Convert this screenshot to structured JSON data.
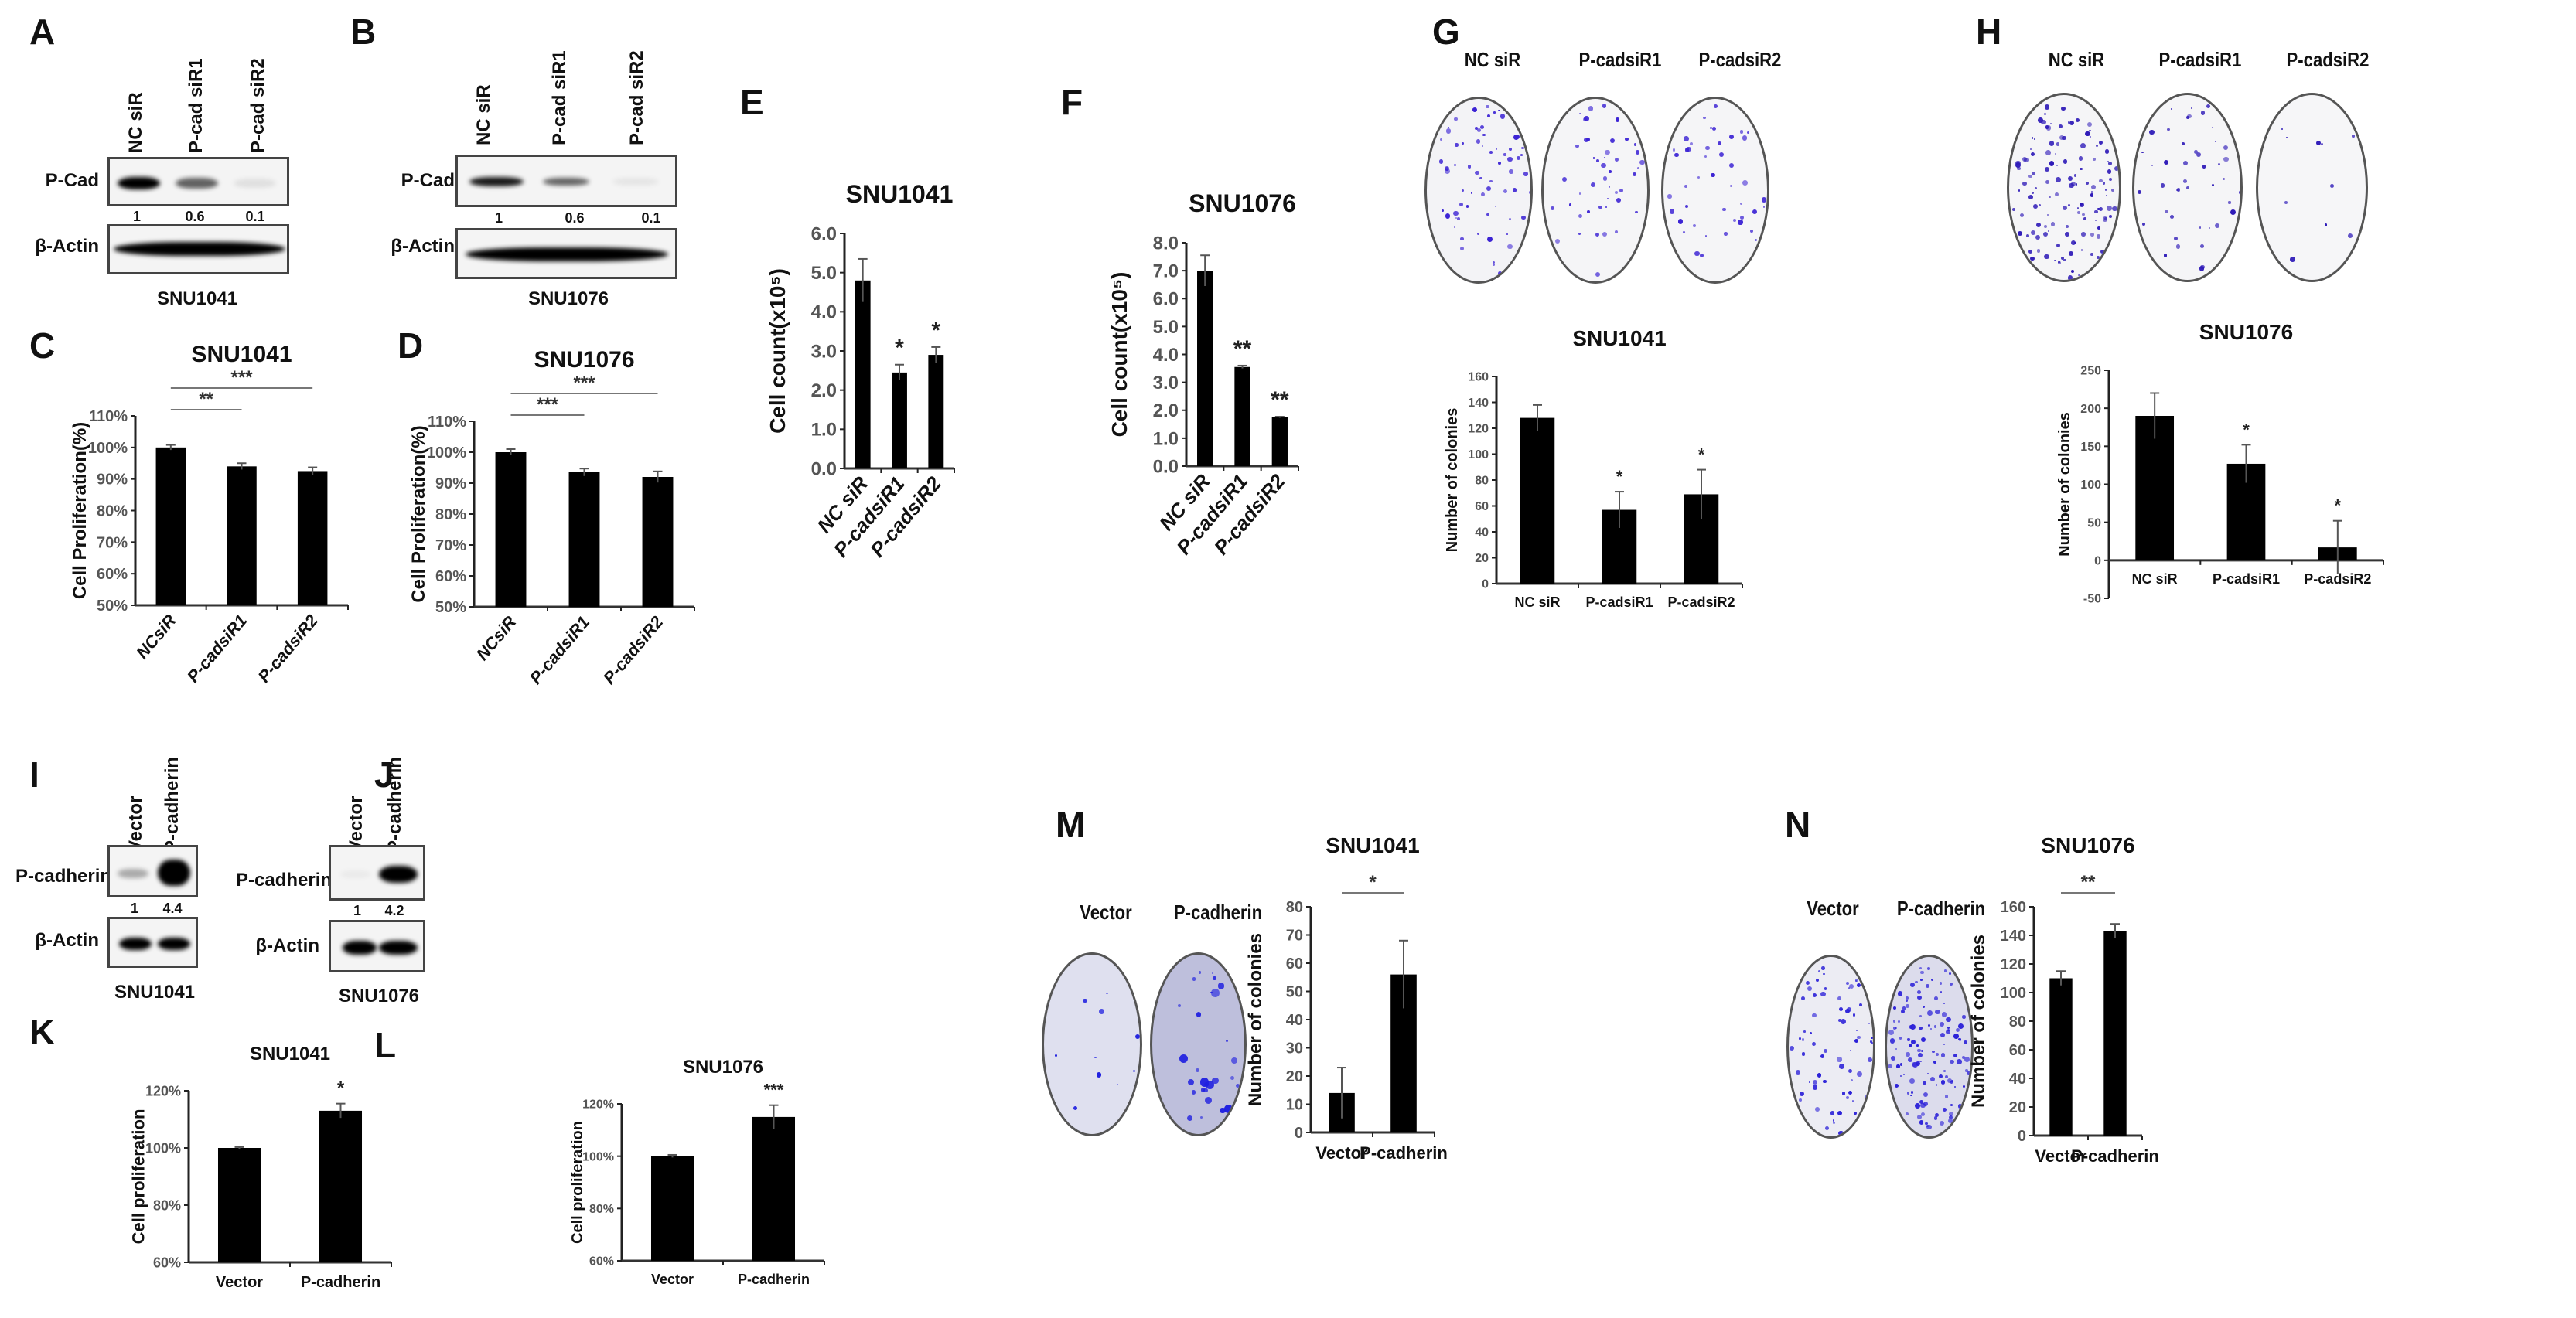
{
  "figure": {
    "panel_letters": [
      "A",
      "B",
      "C",
      "D",
      "E",
      "F",
      "G",
      "H",
      "I",
      "J",
      "K",
      "L",
      "M",
      "N"
    ]
  },
  "blots": {
    "A": {
      "letter": "A",
      "lanes": [
        "NC siR",
        "P-cad siR1",
        "P-cad siR2"
      ],
      "rows": [
        "P-Cad",
        "β-Actin"
      ],
      "quant": [
        "1",
        "0.6",
        "0.1"
      ],
      "cell_line": "SNU1041",
      "pcad_intensity": [
        1.0,
        0.6,
        0.1
      ]
    },
    "B": {
      "letter": "B",
      "lanes": [
        "NC siR",
        "P-cad siR1",
        "P-cad siR2"
      ],
      "rows": [
        "P-Cad",
        "β-Actin"
      ],
      "quant": [
        "1",
        "0.6",
        "0.1"
      ],
      "cell_line": "SNU1076",
      "pcad_intensity": [
        1.0,
        0.6,
        0.1
      ]
    },
    "I": {
      "letter": "I",
      "lanes": [
        "Vector",
        "P-cadherin"
      ],
      "rows": [
        "P-cadherin",
        "β-Actin"
      ],
      "quant": [
        "1",
        "4.4"
      ],
      "cell_line": "SNU1041",
      "pcad_intensity": [
        0.3,
        1.0
      ]
    },
    "J": {
      "letter": "J",
      "lanes": [
        "Vector",
        "P-cadherin"
      ],
      "rows": [
        "P-cadherin",
        "β-Actin"
      ],
      "quant": [
        "1",
        "4.2"
      ],
      "cell_line": "SNU1076",
      "pcad_intensity": [
        0.05,
        1.0
      ]
    }
  },
  "dishes": {
    "G": {
      "letter": "G",
      "labels": [
        "NC siR",
        "P-cadsiR1",
        "P-cadsiR2"
      ],
      "colony_color": "#3b22d4"
    },
    "H": {
      "letter": "H",
      "labels": [
        "NC siR",
        "P-cadsiR1",
        "P-cadsiR2"
      ],
      "colony_color": "#2e1ab8"
    },
    "M": {
      "letter": "M",
      "labels": [
        "Vector",
        "P-cadherin"
      ],
      "colony_color": "#1f1fe0"
    },
    "N": {
      "letter": "N",
      "labels": [
        "Vector",
        "P-cadherin"
      ],
      "colony_color": "#2a1fd8"
    }
  },
  "chart_data": [
    {
      "panel": "C",
      "type": "bar",
      "title": "SNU1041",
      "categories": [
        "NCsiR",
        "P-cadsiR1",
        "P-cadsiR2"
      ],
      "values": [
        100,
        94,
        92.5
      ],
      "errors": [
        0.8,
        1.0,
        1.2
      ],
      "ylabel": "Cell Proliferation(%)",
      "xlabel": "",
      "ylim": [
        50,
        110
      ],
      "yticks": [
        "50%",
        "60%",
        "70%",
        "80%",
        "90%",
        "100%",
        "110%"
      ],
      "significance": [
        {
          "from": 0,
          "to": 1,
          "label": "**"
        },
        {
          "from": 0,
          "to": 2,
          "label": "***"
        }
      ],
      "grid": false
    },
    {
      "panel": "D",
      "type": "bar",
      "title": "SNU1076",
      "categories": [
        "NCsiR",
        "P-cadsiR1",
        "P-cadsiR2"
      ],
      "values": [
        100,
        93.5,
        92
      ],
      "errors": [
        1.0,
        1.2,
        1.8
      ],
      "ylabel": "Cell Proliferation(%)",
      "xlabel": "",
      "ylim": [
        50,
        110
      ],
      "yticks": [
        "50%",
        "60%",
        "70%",
        "80%",
        "90%",
        "100%",
        "110%"
      ],
      "significance": [
        {
          "from": 0,
          "to": 1,
          "label": "***"
        },
        {
          "from": 0,
          "to": 2,
          "label": "***"
        }
      ],
      "grid": false
    },
    {
      "panel": "E",
      "type": "bar",
      "title": "SNU1041",
      "categories": [
        "NC siR",
        "P-cadsiR1",
        "P-cadsiR2"
      ],
      "values": [
        4.8,
        2.45,
        2.9
      ],
      "errors": [
        0.55,
        0.2,
        0.2
      ],
      "ylabel": "Cell count(x10⁵)",
      "xlabel": "",
      "ylim": [
        0,
        6
      ],
      "yticks": [
        "0.0",
        "1.0",
        "2.0",
        "3.0",
        "4.0",
        "5.0",
        "6.0"
      ],
      "annotations": [
        "",
        "*",
        "*"
      ],
      "grid": false
    },
    {
      "panel": "F",
      "type": "bar",
      "title": "SNU1076",
      "categories": [
        "NC siR",
        "P-cadsiR1",
        "P-cadsiR2"
      ],
      "values": [
        7.0,
        3.55,
        1.75
      ],
      "errors": [
        0.55,
        0.05,
        0.02
      ],
      "ylabel": "Cell count(x10⁵)",
      "xlabel": "",
      "ylim": [
        0,
        8
      ],
      "yticks": [
        "0.0",
        "1.0",
        "2.0",
        "3.0",
        "4.0",
        "5.0",
        "6.0",
        "7.0",
        "8.0"
      ],
      "annotations": [
        "",
        "**",
        "**"
      ],
      "grid": false
    },
    {
      "panel": "G",
      "type": "bar",
      "title": "SNU1041",
      "categories": [
        "NC siR",
        "P-cadsiR1",
        "P-cadsiR2"
      ],
      "values": [
        128,
        57,
        69
      ],
      "errors": [
        10,
        14,
        19
      ],
      "ylabel": "Number of colonies",
      "xlabel": "",
      "ylim": [
        0,
        160
      ],
      "yticks": [
        "0",
        "20",
        "40",
        "60",
        "80",
        "100",
        "120",
        "140",
        "160"
      ],
      "annotations": [
        "",
        "*",
        "*"
      ],
      "grid": false
    },
    {
      "panel": "H",
      "type": "bar",
      "title": "SNU1076",
      "categories": [
        "NC siR",
        "P-cadsiR1",
        "P-cadsiR2"
      ],
      "values": [
        190,
        127,
        17
      ],
      "errors": [
        30,
        25,
        35
      ],
      "ylabel": "Number of colonies",
      "xlabel": "",
      "ylim": [
        -50,
        250
      ],
      "yticks": [
        "-50",
        "0",
        "50",
        "100",
        "150",
        "200",
        "250"
      ],
      "annotations": [
        "",
        "*",
        "*"
      ],
      "grid": false
    },
    {
      "panel": "K",
      "type": "bar",
      "title": "SNU1041",
      "categories": [
        "Vector",
        "P-cadherin"
      ],
      "values": [
        100,
        113
      ],
      "errors": [
        0.3,
        2.5
      ],
      "ylabel": "Cell proliferation",
      "xlabel": "",
      "ylim": [
        60,
        120
      ],
      "yticks": [
        "60%",
        "80%",
        "100%",
        "120%"
      ],
      "annotations": [
        "",
        "*"
      ],
      "grid": false
    },
    {
      "panel": "L",
      "type": "bar",
      "title": "SNU1076",
      "categories": [
        "Vector",
        "P-cadherin"
      ],
      "values": [
        100,
        115
      ],
      "errors": [
        0.5,
        4.5
      ],
      "ylabel": "Cell proliferation",
      "xlabel": "",
      "ylim": [
        60,
        120
      ],
      "yticks": [
        "60%",
        "80%",
        "100%",
        "120%"
      ],
      "annotations": [
        "",
        "***"
      ],
      "grid": false
    },
    {
      "panel": "M",
      "type": "bar",
      "title": "SNU1041",
      "categories": [
        "Vector",
        "P-cadherin"
      ],
      "values": [
        14,
        56
      ],
      "errors": [
        9,
        12
      ],
      "ylabel": "Number of colonies",
      "xlabel": "",
      "ylim": [
        0,
        80
      ],
      "yticks": [
        "0",
        "10",
        "20",
        "30",
        "40",
        "50",
        "60",
        "70",
        "80"
      ],
      "significance": [
        {
          "from": 0,
          "to": 1,
          "label": "*"
        }
      ],
      "grid": false
    },
    {
      "panel": "N",
      "type": "bar",
      "title": "SNU1076",
      "categories": [
        "Vector",
        "P-cadherin"
      ],
      "values": [
        110,
        143
      ],
      "errors": [
        5,
        5
      ],
      "ylabel": "Number of colonies",
      "xlabel": "",
      "ylim": [
        0,
        160
      ],
      "yticks": [
        "0",
        "20",
        "40",
        "60",
        "80",
        "100",
        "120",
        "140",
        "160"
      ],
      "significance": [
        {
          "from": 0,
          "to": 1,
          "label": "**"
        }
      ],
      "grid": false
    }
  ]
}
